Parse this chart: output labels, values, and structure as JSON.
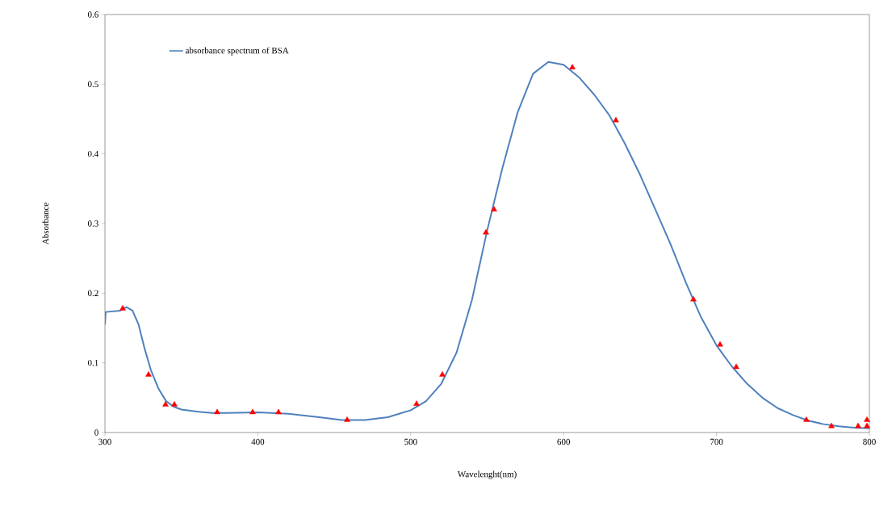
{
  "chart_data": {
    "type": "line",
    "xlabel": "Wavelenght(nm)",
    "ylabel": "Absorbance",
    "xlim": [
      300,
      800
    ],
    "xticks": [
      300,
      400,
      500,
      600,
      700,
      800
    ],
    "ylim": [
      0,
      0.6
    ],
    "yticks": [
      0,
      0.1,
      0.2,
      0.3,
      0.4,
      0.5,
      0.6
    ],
    "grid": false,
    "legend": "top left",
    "series": [
      {
        "name": "absorbance spectrum of BSA",
        "color": "#4f81bd",
        "marker": "none",
        "line_style": "solid",
        "x": [
          300,
          300.5,
          310,
          314,
          318,
          322,
          326,
          330,
          335,
          340,
          345,
          350,
          360,
          370,
          380,
          400,
          420,
          440,
          455,
          470,
          485,
          500,
          510,
          520,
          530,
          540,
          550,
          560,
          570,
          580,
          590,
          600,
          610,
          620,
          630,
          640,
          650,
          660,
          670,
          680,
          690,
          700,
          710,
          720,
          730,
          740,
          750,
          760,
          770,
          780,
          790,
          800
        ],
        "values": [
          0.155,
          0.173,
          0.175,
          0.18,
          0.175,
          0.155,
          0.12,
          0.09,
          0.063,
          0.045,
          0.037,
          0.033,
          0.03,
          0.028,
          0.028,
          0.029,
          0.027,
          0.022,
          0.018,
          0.018,
          0.022,
          0.032,
          0.045,
          0.07,
          0.115,
          0.19,
          0.29,
          0.38,
          0.46,
          0.515,
          0.532,
          0.528,
          0.51,
          0.485,
          0.455,
          0.415,
          0.37,
          0.32,
          0.27,
          0.215,
          0.165,
          0.125,
          0.095,
          0.07,
          0.05,
          0.035,
          0.025,
          0.017,
          0.012,
          0.009,
          0.007,
          0.006
        ]
      },
      {
        "type": "scatter",
        "color": "#ff0000",
        "marker": "triangle",
        "x": [
          311.6,
          328.5,
          339.6,
          345.4,
          373.4,
          396.6,
          413.5,
          458.4,
          503.8,
          520.7,
          549.2,
          554.5,
          605.7,
          634.2,
          684.9,
          702.3,
          712.9,
          758.8,
          775.2,
          792.6,
          798.4,
          798.4
        ],
        "values": [
          0.178,
          0.083,
          0.04,
          0.04,
          0.029,
          0.029,
          0.029,
          0.018,
          0.041,
          0.083,
          0.287,
          0.32,
          0.524,
          0.448,
          0.191,
          0.126,
          0.094,
          0.018,
          0.009,
          0.009,
          0.009,
          0.018
        ]
      }
    ]
  }
}
